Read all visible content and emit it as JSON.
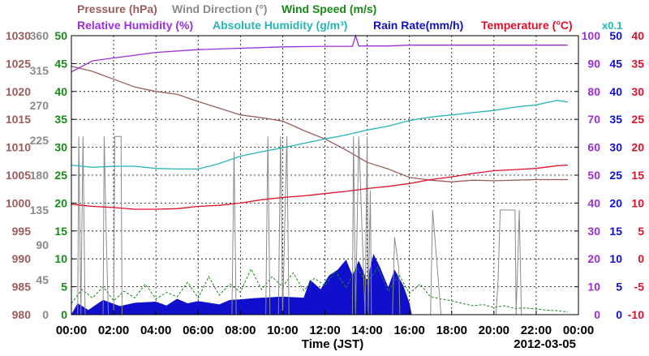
{
  "chart_data": {
    "type": "line",
    "date_label": "2012-03-05",
    "xlabel": "Time (JST)",
    "x_ticks": [
      "00:00",
      "02:00",
      "04:00",
      "06:00",
      "08:00",
      "10:00",
      "12:00",
      "14:00",
      "16:00",
      "18:00",
      "20:00",
      "22:00",
      "00:00"
    ],
    "xlim_hours": [
      0,
      24
    ],
    "grid": true,
    "legend": [
      {
        "label": "Pressure (hPa)",
        "color": "#9b5c5c"
      },
      {
        "label": "Wind Direction (°)",
        "color": "#8a8a8a"
      },
      {
        "label": "Wind Speed (m/s)",
        "color": "#178a17"
      },
      {
        "label": "Relative Humidity (%)",
        "color": "#9b2fd6"
      },
      {
        "label": "Absolute Humidity (g/m³)",
        "color": "#26b5b5"
      },
      {
        "label": "Rain Rate(mm/h)",
        "color": "#1010cc"
      },
      {
        "label": "Temperature (°C)",
        "color": "#e0102a"
      }
    ],
    "abs_humidity_scale_note": "x0.1",
    "axes": {
      "pressure": {
        "ylim": [
          980,
          1030
        ],
        "ticks": [
          "1030",
          "1025",
          "1020",
          "1015",
          "1010",
          "1005",
          "1000",
          "995",
          "990",
          "985",
          "980"
        ],
        "color": "#9b5c5c"
      },
      "wind_direction": {
        "ylim": [
          0,
          360
        ],
        "ticks": [
          "360",
          "315",
          "270",
          "225",
          "180",
          "135",
          "90",
          "45",
          "0"
        ],
        "color": "#8a8a8a"
      },
      "wind_speed": {
        "ylim": [
          0,
          50
        ],
        "ticks": [
          "50",
          "45",
          "40",
          "35",
          "30",
          "25",
          "20",
          "15",
          "10",
          "5",
          "0"
        ],
        "color": "#178a17"
      },
      "relative_humidity": {
        "ylim": [
          0,
          100
        ],
        "ticks": [
          "100",
          "90",
          "80",
          "70",
          "60",
          "50",
          "40",
          "30",
          "20",
          "10",
          "0"
        ],
        "color": "#9b2fd6"
      },
      "rain_rate": {
        "ylim": [
          0,
          50
        ],
        "ticks": [
          "50",
          "45",
          "40",
          "35",
          "30",
          "25",
          "20",
          "15",
          "10",
          "5",
          "0"
        ],
        "color": "#1010cc"
      },
      "temperature": {
        "ylim": [
          -10,
          40
        ],
        "ticks": [
          "40",
          "35",
          "30",
          "25",
          "20",
          "15",
          "10",
          "5",
          "0",
          "-5",
          "-10"
        ],
        "color": "#e0102a"
      }
    },
    "series": [
      {
        "name": "Pressure (hPa)",
        "axis": "pressure",
        "x": [
          0,
          1,
          2,
          3,
          4,
          5,
          6,
          7,
          8,
          9,
          10,
          11,
          12,
          13,
          14,
          15,
          16,
          17,
          18,
          19,
          20,
          21,
          22,
          23.5
        ],
        "y": [
          1024.5,
          1023.6,
          1022.2,
          1020.8,
          1020,
          1019.5,
          1018.2,
          1017,
          1015.8,
          1015.3,
          1014.7,
          1013,
          1011.5,
          1009.5,
          1007.3,
          1006.1,
          1004.6,
          1004.1,
          1003.8,
          1004.1,
          1004,
          1004.1,
          1004.2,
          1004.2
        ]
      },
      {
        "name": "Relative Humidity (%)",
        "axis": "relative_humidity",
        "x": [
          0,
          0.5,
          1,
          2,
          3,
          4,
          6,
          8,
          10,
          12,
          13.3,
          13.45,
          13.6,
          14,
          15,
          16,
          17,
          18,
          20,
          22,
          23.5
        ],
        "y": [
          87,
          89,
          91,
          92,
          93,
          94,
          95,
          95.5,
          96,
          96.2,
          96.2,
          100,
          96.3,
          96.3,
          96.3,
          96.6,
          96.6,
          96.6,
          96.6,
          96.6,
          96.6
        ]
      },
      {
        "name": "Absolute Humidity (g/m³)",
        "axis": "wind_speed",
        "x": [
          0,
          1,
          2,
          3,
          4,
          5,
          6,
          7,
          8,
          9,
          10,
          11,
          12,
          13,
          14,
          15,
          16,
          17,
          18,
          19,
          20,
          21,
          22,
          23,
          23.5
        ],
        "y": [
          26.8,
          26.4,
          26.6,
          26.6,
          26.2,
          26.1,
          26.1,
          27.1,
          28.4,
          29.2,
          29.9,
          30.7,
          31.5,
          32.2,
          33.1,
          33.8,
          34.8,
          35.4,
          35.8,
          36.2,
          36.6,
          37.2,
          37.6,
          38.4,
          38.1
        ]
      },
      {
        "name": "Temperature (°C)",
        "axis": "temperature",
        "x": [
          0,
          1,
          2,
          3,
          4,
          5,
          6,
          7,
          8,
          9,
          10,
          11,
          12,
          13,
          14,
          15,
          16,
          17,
          18,
          19,
          20,
          21,
          22,
          23,
          23.5
        ],
        "y": [
          9.8,
          9.4,
          9.2,
          8.9,
          8.9,
          9,
          9.4,
          9.6,
          10,
          10.6,
          11,
          11.3,
          11.7,
          12.1,
          12.6,
          13,
          13.5,
          14.2,
          14.7,
          15.3,
          15.8,
          16,
          16.2,
          16.7,
          16.8
        ]
      },
      {
        "name": "Wind Direction (°)",
        "axis": "wind_direction",
        "x": [
          0,
          0.3,
          0.35,
          0.45,
          0.55,
          0.65,
          1.5,
          1.55,
          1.65,
          1.75,
          2,
          2.05,
          2.35,
          2.4,
          2.6,
          7.6,
          7.7,
          7.8,
          9.2,
          9.3,
          9.4,
          9.8,
          9.9,
          10,
          10.2,
          10.3,
          13.3,
          13.35,
          13.45,
          13.6,
          13.9,
          14,
          14.05,
          14.15,
          14.2,
          15.2,
          15.3,
          15.5,
          15.55,
          16,
          16.1,
          16.5,
          16.6,
          17,
          17.1,
          17.5,
          17.6,
          18,
          18.1,
          20,
          20.1,
          20.2,
          20.3,
          20.6,
          20.7,
          21,
          21.05,
          21.2,
          21.3,
          22,
          23.5
        ],
        "y": [
          0,
          0,
          230,
          0,
          230,
          0,
          0,
          230,
          100,
          0,
          0,
          230,
          230,
          0,
          0,
          0,
          210,
          0,
          0,
          230,
          0,
          0,
          230,
          0,
          230,
          0,
          0,
          230,
          0,
          230,
          0,
          230,
          0,
          160,
          0,
          0,
          100,
          60,
          0,
          0,
          0,
          0,
          0,
          0,
          135,
          0,
          0,
          0,
          0,
          0,
          0,
          45,
          135,
          135,
          135,
          135,
          0,
          135,
          0,
          0,
          0
        ]
      },
      {
        "name": "Wind Speed (m/s)",
        "axis": "wind_speed",
        "x": [
          0,
          0.5,
          1,
          1.5,
          2,
          2.5,
          3,
          3.5,
          4,
          4.5,
          5,
          5.5,
          6,
          6.5,
          7,
          7.5,
          8,
          8.5,
          9,
          9.5,
          10,
          10.5,
          11,
          11.5,
          12,
          12.5,
          13,
          13.5,
          14,
          14.5,
          15,
          15.5,
          16,
          16.5,
          17,
          17.5,
          18,
          18.5,
          19,
          19.5,
          20,
          20.5,
          21,
          21.5,
          22,
          22.5,
          23,
          23.5
        ],
        "y": [
          2,
          4.5,
          3,
          5,
          2.5,
          4.2,
          3,
          5.5,
          2.8,
          4,
          3.2,
          5.8,
          3,
          6.8,
          3.5,
          5.5,
          4,
          8.2,
          4.5,
          6.8,
          5,
          7.5,
          4.3,
          6.5,
          5.2,
          7.8,
          4.8,
          8.5,
          5.5,
          8.5,
          4.2,
          7.2,
          3.8,
          5.5,
          3.2,
          2.8,
          2.5,
          2,
          1.6,
          1.8,
          1.3,
          1.6,
          1.1,
          1.2,
          1,
          0.8,
          0.7,
          0.5
        ]
      },
      {
        "name": "Rain Rate(mm/h)",
        "axis": "rain_rate",
        "x": [
          0,
          0.3,
          0.8,
          1.5,
          2.3,
          3,
          4,
          4.5,
          5,
          5.5,
          6,
          7,
          7.5,
          8,
          8.6,
          9,
          9.5,
          10,
          10.5,
          11,
          11.3,
          11.8,
          12.2,
          12.6,
          13,
          13.3,
          13.6,
          14,
          14.3,
          14.6,
          15,
          15.3,
          15.7,
          16,
          16.1,
          24
        ],
        "y": [
          0,
          2,
          0.8,
          2.6,
          1.5,
          2.1,
          2.3,
          1.6,
          2.8,
          2,
          2.4,
          1.8,
          2.6,
          2.7,
          2.9,
          3,
          3.1,
          3.2,
          3.1,
          3,
          6.2,
          4.5,
          7,
          8,
          9.8,
          7,
          9.6,
          6,
          10.8,
          8.5,
          4.8,
          8,
          5.2,
          2,
          0,
          0
        ]
      }
    ]
  }
}
